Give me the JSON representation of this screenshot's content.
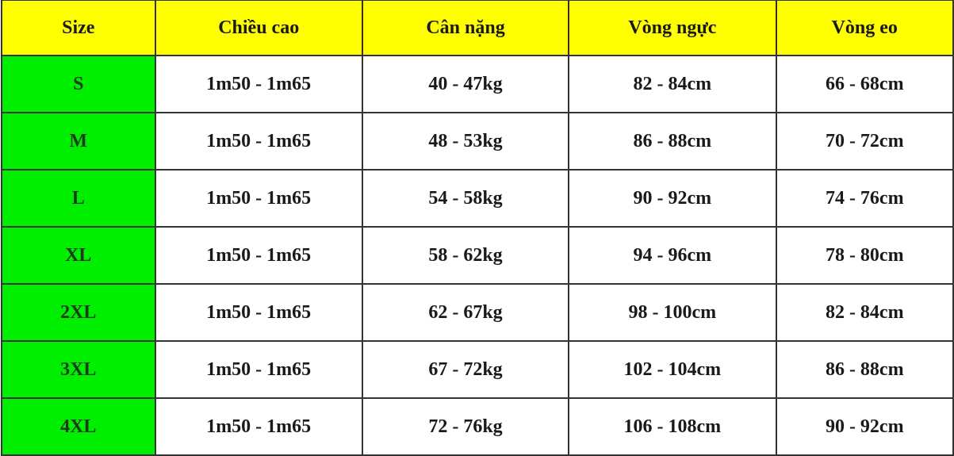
{
  "table": {
    "headers": [
      "Size",
      "Chiều cao",
      "Cân nặng",
      "Vòng ngực",
      "Vòng eo"
    ],
    "rows": [
      [
        "S",
        "1m50 - 1m65",
        "40 - 47kg",
        "82 - 84cm",
        "66 - 68cm"
      ],
      [
        "M",
        "1m50 - 1m65",
        "48 - 53kg",
        "86 - 88cm",
        "70 - 72cm"
      ],
      [
        "L",
        "1m50 - 1m65",
        "54 - 58kg",
        "90 - 92cm",
        "74 - 76cm"
      ],
      [
        "XL",
        "1m50 - 1m65",
        "58 - 62kg",
        "94 - 96cm",
        "78 - 80cm"
      ],
      [
        "2XL",
        "1m50 - 1m65",
        "62 - 67kg",
        "98 - 100cm",
        "82 - 84cm"
      ],
      [
        "3XL",
        "1m50 - 1m65",
        "67 - 72kg",
        "102 - 104cm",
        "86 - 88cm"
      ],
      [
        "4XL",
        "1m50 - 1m65",
        "72 - 76kg",
        "106 - 108cm",
        "90 - 92cm"
      ]
    ]
  },
  "colors": {
    "header_bg": "#ffff00",
    "size_col_bg": "#00ee00",
    "border": "#333333"
  }
}
